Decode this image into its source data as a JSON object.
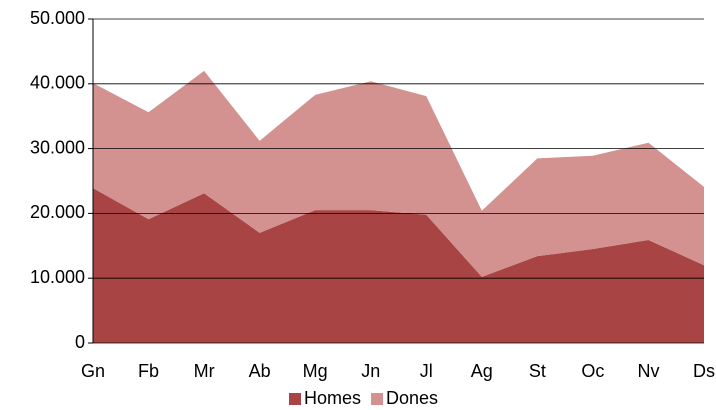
{
  "chart_data": {
    "type": "stacked-area",
    "categories": [
      "Gn",
      "Fb",
      "Mr",
      "Ab",
      "Mg",
      "Jn",
      "Jl",
      "Ag",
      "St",
      "Oc",
      "Nv",
      "Ds"
    ],
    "series": [
      {
        "name": "Homes",
        "color": "#a84444",
        "values": [
          23900,
          19100,
          23100,
          17000,
          20500,
          20500,
          19800,
          10200,
          13400,
          14500,
          15900,
          12000
        ]
      },
      {
        "name": "Dones",
        "color": "#d39190",
        "values": [
          16200,
          16500,
          18900,
          14200,
          17800,
          19900,
          18300,
          10200,
          15100,
          14400,
          15000,
          12100
        ]
      }
    ],
    "ylim": [
      0,
      50000
    ],
    "yticks": [
      0,
      {
        "value": 10000,
        "label": "10.000"
      },
      {
        "value": 20000,
        "label": "20.000"
      },
      {
        "value": 30000,
        "label": "30.000"
      },
      {
        "value": 40000,
        "label": "40.000"
      },
      {
        "value": 50000,
        "label": "50.000"
      }
    ],
    "grid": true,
    "legend": "bottom"
  }
}
